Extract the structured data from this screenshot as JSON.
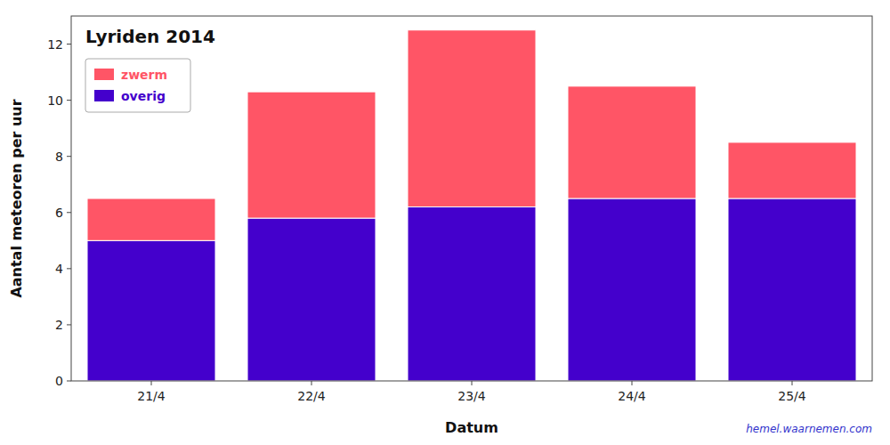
{
  "chart_data": {
    "type": "bar",
    "stacked": true,
    "title": "Lyriden 2014",
    "x_label": "Datum",
    "y_label": "Aantal meteoren per uur",
    "categories": [
      "21/4",
      "22/4",
      "23/4",
      "24/4",
      "25/4"
    ],
    "series": [
      {
        "name": "overig",
        "color": "#4400cc",
        "values": [
          5.0,
          5.8,
          6.2,
          6.5,
          6.5
        ]
      },
      {
        "name": "zwerm",
        "color": "#ff5566",
        "values": [
          1.5,
          4.5,
          6.3,
          4.0,
          2.0
        ]
      }
    ],
    "ylim": [
      0,
      13
    ],
    "yticks": [
      0,
      2,
      4,
      6,
      8,
      10,
      12
    ],
    "grid": false,
    "legend": "upper left",
    "annotations": [
      {
        "text": "hemel.waarnemen.com",
        "color": "#3333cc"
      }
    ]
  }
}
